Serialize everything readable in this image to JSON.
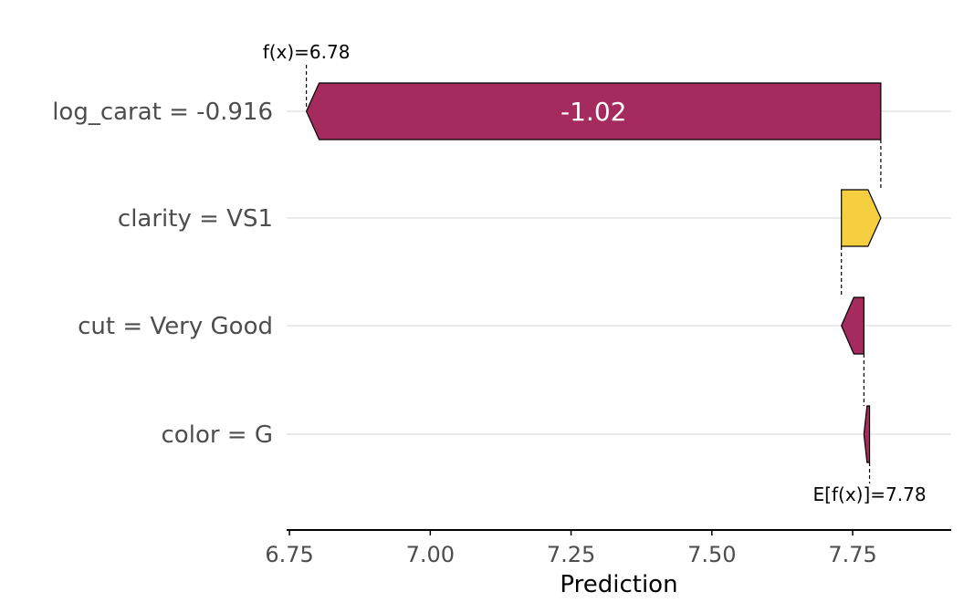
{
  "chart_data": {
    "type": "waterfall",
    "xlabel": "Prediction",
    "xlim": [
      6.745,
      7.925
    ],
    "x_ticks": [
      "6.75",
      "7.00",
      "7.25",
      "7.50",
      "7.75"
    ],
    "baseline_label": "E[f(x)]=7.78",
    "baseline_value": 7.78,
    "prediction_label": "f(x)=6.78",
    "prediction_value": 6.78,
    "colors": {
      "negative": "#a52a5e",
      "positive": "#f5cf3f"
    },
    "features": [
      {
        "label": "log_carat = -0.916",
        "start": 7.8,
        "end": 6.78,
        "shap_label": "-1.02"
      },
      {
        "label": "clarity = VS1",
        "start": 7.73,
        "end": 7.8,
        "shap_label": ""
      },
      {
        "label": "cut = Very Good",
        "start": 7.77,
        "end": 7.73,
        "shap_label": ""
      },
      {
        "label": "color = G",
        "start": 7.78,
        "end": 7.77,
        "shap_label": ""
      }
    ]
  }
}
